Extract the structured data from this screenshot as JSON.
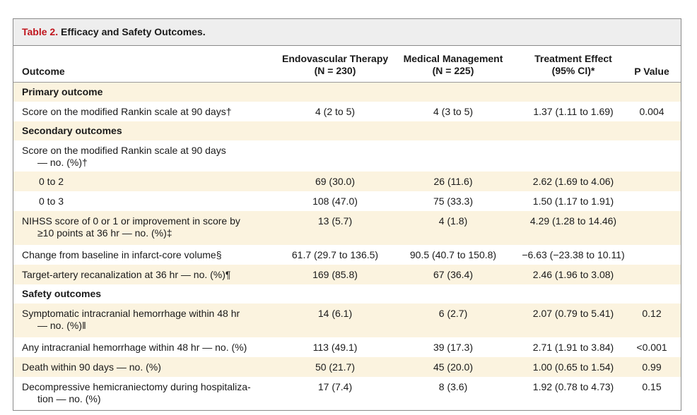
{
  "table": {
    "label": "Table 2.",
    "title": "Efficacy and Safety Outcomes.",
    "headers": {
      "outcome": "Outcome",
      "evt_line1": "Endovascular Therapy",
      "evt_line2": "(N = 230)",
      "mm_line1": "Medical Management",
      "mm_line2": "(N = 225)",
      "te_line1": "Treatment Effect",
      "te_line2": "(95% CI)*",
      "pvalue": "P Value"
    },
    "rows": [
      {
        "outcome": "Primary outcome"
      },
      {
        "outcome": "Score on the modified Rankin scale at 90 days†",
        "evt": "4 (2 to 5)",
        "mm": "4 (3 to 5)",
        "te": "1.37 (1.11 to 1.69)",
        "p": "0.004"
      },
      {
        "outcome": "Secondary outcomes"
      },
      {
        "outcome_line1": "Score on the modified Rankin scale at 90 days",
        "outcome_line2": "— no. (%)†"
      },
      {
        "outcome": "0 to 2",
        "evt": "69 (30.0)",
        "mm": "26 (11.6)",
        "te": "2.62 (1.69 to 4.06)"
      },
      {
        "outcome": "0 to 3",
        "evt": "108 (47.0)",
        "mm": "75 (33.3)",
        "te": "1.50 (1.17 to 1.91)"
      },
      {
        "outcome_line1": "NIHSS score of 0 or 1 or improvement in score by",
        "outcome_line2": "≥10 points at 36 hr — no. (%)‡",
        "evt": "13 (5.7)",
        "mm": "4 (1.8)",
        "te": "4.29 (1.28 to 14.46)"
      },
      {
        "outcome": "Change from baseline in infarct-core volume§",
        "evt": "61.7 (29.7 to 136.5)",
        "mm": "90.5 (40.7 to 150.8)",
        "te": "−6.63 (−23.38 to 10.11)"
      },
      {
        "outcome": "Target-artery recanalization at 36 hr — no. (%)¶",
        "evt": "169 (85.8)",
        "mm": "67 (36.4)",
        "te": "2.46 (1.96 to 3.08)"
      },
      {
        "outcome": "Safety outcomes"
      },
      {
        "outcome_line1": "Symptomatic intracranial hemorrhage within 48 hr",
        "outcome_line2": "— no. (%)‖",
        "evt": "14 (6.1)",
        "mm": "6 (2.7)",
        "te": "2.07 (0.79 to 5.41)",
        "p": "0.12"
      },
      {
        "outcome": "Any intracranial hemorrhage within 48 hr — no. (%)",
        "evt": "113 (49.1)",
        "mm": "39 (17.3)",
        "te": "2.71 (1.91 to 3.84)",
        "p": "<0.001"
      },
      {
        "outcome": "Death within 90 days — no. (%)",
        "evt": "50 (21.7)",
        "mm": "45 (20.0)",
        "te": "1.00 (0.65 to 1.54)",
        "p": "0.99"
      },
      {
        "outcome_line1": "Decompressive hemicraniectomy during hospitaliza-",
        "outcome_line2": "tion — no. (%)",
        "evt": "17 (7.4)",
        "mm": "8 (3.6)",
        "te": "1.92 (0.78 to 4.73)",
        "p": "0.15"
      }
    ]
  }
}
